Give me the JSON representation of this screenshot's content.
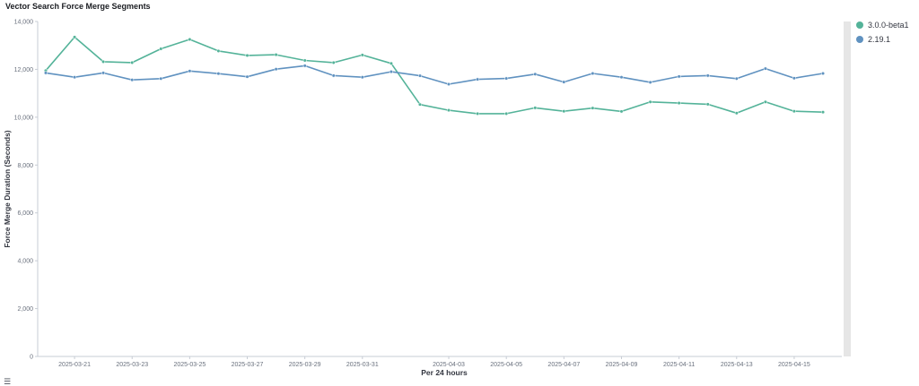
{
  "chart_data": {
    "type": "line",
    "title": "Vector Search Force Merge Segments",
    "xlabel": "Per 24 hours",
    "ylabel": "Force Merge Duration (Seconds)",
    "ylim": [
      0,
      14000
    ],
    "yticks": [
      0,
      2000,
      4000,
      6000,
      8000,
      10000,
      12000,
      14000
    ],
    "ytick_labels": [
      "0",
      "2,000",
      "4,000",
      "6,000",
      "8,000",
      "10,000",
      "12,000",
      "14,000"
    ],
    "xticks": [
      "2025-03-21",
      "2025-03-23",
      "2025-03-25",
      "2025-03-27",
      "2025-03-29",
      "2025-03-31",
      "2025-04-03",
      "2025-04-05",
      "2025-04-07",
      "2025-04-09",
      "2025-04-11",
      "2025-04-13",
      "2025-04-15"
    ],
    "legend_position": "top-right",
    "series": [
      {
        "name": "3.0.0-beta1",
        "color": "#54b399",
        "x": [
          "2025-03-20",
          "2025-03-21",
          "2025-03-22",
          "2025-03-23",
          "2025-03-24",
          "2025-03-25",
          "2025-03-26",
          "2025-03-27",
          "2025-03-28",
          "2025-03-29",
          "2025-03-30",
          "2025-03-31",
          "2025-04-01",
          "2025-04-02",
          "2025-04-03",
          "2025-04-04",
          "2025-04-05",
          "2025-04-06",
          "2025-04-07",
          "2025-04-08",
          "2025-04-09",
          "2025-04-10",
          "2025-04-11",
          "2025-04-12",
          "2025-04-13",
          "2025-04-14",
          "2025-04-15",
          "2025-04-16"
        ],
        "values": [
          11950,
          13350,
          12320,
          12280,
          12860,
          13250,
          12770,
          12580,
          12610,
          12370,
          12280,
          12600,
          12250,
          10530,
          10290,
          10150,
          10150,
          10390,
          10250,
          10380,
          10240,
          10640,
          10590,
          10540,
          10170,
          10640,
          10250,
          10210
        ]
      },
      {
        "name": "2.19.1",
        "color": "#6092c0",
        "x": [
          "2025-03-20",
          "2025-03-21",
          "2025-03-22",
          "2025-03-23",
          "2025-03-24",
          "2025-03-25",
          "2025-03-26",
          "2025-03-27",
          "2025-03-28",
          "2025-03-29",
          "2025-03-30",
          "2025-03-31",
          "2025-04-01",
          "2025-04-02",
          "2025-04-03",
          "2025-04-04",
          "2025-04-05",
          "2025-04-06",
          "2025-04-07",
          "2025-04-08",
          "2025-04-09",
          "2025-04-10",
          "2025-04-11",
          "2025-04-12",
          "2025-04-13",
          "2025-04-14",
          "2025-04-15",
          "2025-04-16"
        ],
        "values": [
          11850,
          11670,
          11850,
          11560,
          11610,
          11930,
          11820,
          11690,
          12010,
          12150,
          11740,
          11670,
          11900,
          11730,
          11380,
          11580,
          11620,
          11800,
          11470,
          11830,
          11670,
          11460,
          11700,
          11740,
          11610,
          12030,
          11630,
          11830
        ]
      }
    ]
  }
}
